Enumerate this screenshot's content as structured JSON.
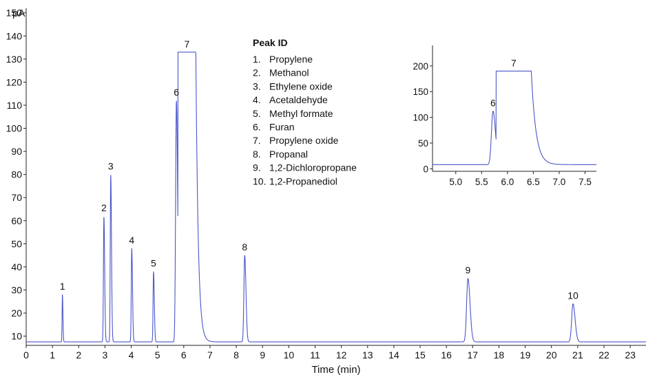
{
  "chart_data": [
    {
      "type": "line",
      "title": "",
      "xlabel": "Time (min)",
      "ylabel": "pA",
      "xlim": [
        0,
        23.6
      ],
      "ylim": [
        6,
        152
      ],
      "x_ticks": [
        "0",
        "1",
        "2",
        "3",
        "4",
        "5",
        "6",
        "7",
        "8",
        "9",
        "10",
        "11",
        "12",
        "13",
        "14",
        "15",
        "16",
        "17",
        "18",
        "19",
        "20",
        "21",
        "22",
        "23"
      ],
      "y_ticks": [
        "10",
        "20",
        "30",
        "40",
        "50",
        "60",
        "70",
        "80",
        "90",
        "100",
        "110",
        "120",
        "130",
        "140",
        "150"
      ],
      "baseline": 7.5,
      "clip_level": 133,
      "peaks": [
        {
          "label": "1",
          "rt": 1.38,
          "height": 28
        },
        {
          "label": "2",
          "rt": 2.96,
          "height": 62
        },
        {
          "label": "3",
          "rt": 3.22,
          "height": 80
        },
        {
          "label": "4",
          "rt": 4.02,
          "height": 48
        },
        {
          "label": "5",
          "rt": 4.85,
          "height": 38
        },
        {
          "label": "6",
          "rt": 5.72,
          "height": 112
        },
        {
          "label": "7",
          "rt": 6.1,
          "height": 133
        },
        {
          "label": "8",
          "rt": 8.32,
          "height": 45
        },
        {
          "label": "9",
          "rt": 16.82,
          "height": 35
        },
        {
          "label": "10",
          "rt": 20.82,
          "height": 24
        }
      ],
      "legend": {
        "title": "Peak ID",
        "items": [
          {
            "num": "1.",
            "name": "Propylene"
          },
          {
            "num": "2.",
            "name": "Methanol"
          },
          {
            "num": "3.",
            "name": "Ethylene oxide"
          },
          {
            "num": "4.",
            "name": "Acetaldehyde"
          },
          {
            "num": "5.",
            "name": "Methyl formate"
          },
          {
            "num": "6.",
            "name": "Furan"
          },
          {
            "num": "7.",
            "name": "Propylene oxide"
          },
          {
            "num": "8.",
            "name": "Propanal"
          },
          {
            "num": "9.",
            "name": "1,2-Dichloropropane"
          },
          {
            "num": "10.",
            "name": "1,2-Propanediol"
          }
        ]
      },
      "trace_color": "#4a55c8"
    },
    {
      "type": "line",
      "title": "",
      "xlim": [
        4.55,
        7.72
      ],
      "ylim": [
        -5,
        240
      ],
      "x_ticks": [
        "5.0",
        "5.5",
        "6.0",
        "6.5",
        "7.0",
        "7.5"
      ],
      "y_ticks": [
        "0",
        "50",
        "100",
        "150",
        "200"
      ],
      "baseline": 8,
      "clip_level": 190,
      "peaks": [
        {
          "label": "6",
          "rt": 5.72,
          "height": 112
        },
        {
          "label": "7",
          "rt": 6.1,
          "height": 190
        }
      ],
      "trace_color": "#4a55c8"
    }
  ]
}
